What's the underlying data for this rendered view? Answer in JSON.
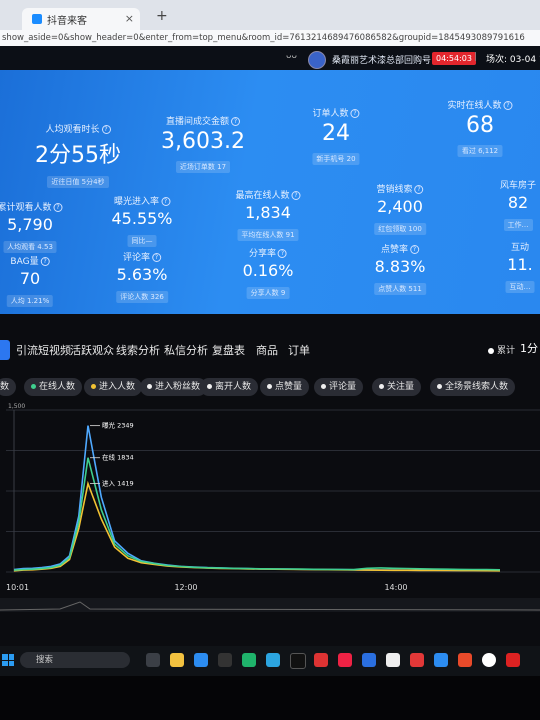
{
  "browser": {
    "tab_title": "抖音来客",
    "tab_close": "×",
    "new_tab": "+",
    "url": "show_aside=0&show_header=0&enter_from=top_menu&room_id=7613214689476086582&groupid=1845493089791616"
  },
  "header": {
    "logo": "ᴗᴗ",
    "account": "桑霞丽艺术漆总部回购号",
    "timer": "04:54:03",
    "session_label": "场次: 03-04 1"
  },
  "metrics": {
    "avg_watch": {
      "label": "人均观看时长",
      "value": "2分55秒",
      "sub": "近往日值 5分4秒"
    },
    "gmv": {
      "label": "直播间成交金额",
      "value": "3,603.2",
      "sub": "近场订单数 17"
    },
    "orders": {
      "label": "订单人数",
      "value": "24",
      "sub": "新手机号 20"
    },
    "online": {
      "label": "实时在线人数",
      "value": "68",
      "sub": "看过 6,112"
    },
    "cumulative": {
      "label": "累计观看人数",
      "value": "5,790",
      "sub": "人均观看 4.53"
    },
    "exposure": {
      "label": "曝光进入率",
      "value": "45.55%",
      "sub": "同比—"
    },
    "peak": {
      "label": "最高在线人数",
      "value": "1,834",
      "sub": "平均在线人数 91"
    },
    "leads": {
      "label": "营销线索",
      "value": "2,400",
      "sub": "红包领取 100"
    },
    "windmill": {
      "label": "风车房子",
      "value": "82",
      "sub": "工作…"
    },
    "bag": {
      "label": "BAG量",
      "value": "70",
      "sub": "人均 1.21%"
    },
    "comments": {
      "label": "评论率",
      "value": "5.63%",
      "sub": "评论人数 326"
    },
    "shares": {
      "label": "分享率",
      "value": "0.16%",
      "sub": "分享人数 9"
    },
    "likes": {
      "label": "点赞率",
      "value": "8.83%",
      "sub": "点赞人数 511"
    },
    "interact": {
      "label": "互动",
      "value": "11.",
      "sub": "互动…"
    }
  },
  "nav": {
    "tabs": [
      "引流短视频",
      "活跃观众",
      "线索分析",
      "私信分析",
      "复盘表",
      "商品",
      "订单"
    ],
    "toggle": "累计",
    "period": "1分"
  },
  "chips": [
    "数",
    "在线人数",
    "进入人数",
    "进入粉丝数",
    "离开人数",
    "点赞量",
    "评论量",
    "关注量",
    "全场景线索人数"
  ],
  "chart_data": {
    "type": "line",
    "x_ticks": [
      "10:01",
      "12:00",
      "14:00"
    ],
    "annotations": [
      {
        "label": "曝光 2349",
        "value": 2349
      },
      {
        "label": "在线 1834",
        "value": 1834
      },
      {
        "label": "进入 1419",
        "value": 1419
      }
    ],
    "axis_label_top": "1,500",
    "ylim": [
      0,
      2600
    ],
    "series": [
      {
        "color": "#4fa9ff",
        "values": [
          40,
          55,
          60,
          70,
          90,
          130,
          260,
          900,
          2349,
          1200,
          500,
          300,
          180,
          140,
          110,
          90,
          80,
          70,
          65,
          60,
          55,
          50,
          48,
          46,
          44,
          42,
          40,
          38,
          36,
          34,
          32,
          30,
          29,
          28,
          27,
          26,
          25,
          24,
          23,
          22
        ]
      },
      {
        "color": "#f2c233",
        "values": [
          20,
          30,
          35,
          45,
          60,
          90,
          200,
          700,
          1419,
          850,
          400,
          220,
          150,
          120,
          95,
          80,
          70,
          62,
          58,
          54,
          50,
          47,
          45,
          43,
          41,
          39,
          37,
          35,
          33,
          31,
          29,
          28,
          27,
          26,
          25,
          24,
          23,
          22,
          21,
          20
        ]
      },
      {
        "color": "#3fcf8e",
        "values": [
          30,
          40,
          45,
          55,
          70,
          110,
          230,
          800,
          1834,
          1000,
          450,
          260,
          170,
          135,
          105,
          88,
          76,
          68,
          62,
          58,
          55,
          52,
          50,
          48,
          46,
          44,
          42,
          40,
          38,
          60,
          65,
          60,
          56,
          52,
          48,
          45,
          42,
          40,
          38,
          36
        ]
      }
    ]
  },
  "taskbar": {
    "search_placeholder": "搜索"
  }
}
